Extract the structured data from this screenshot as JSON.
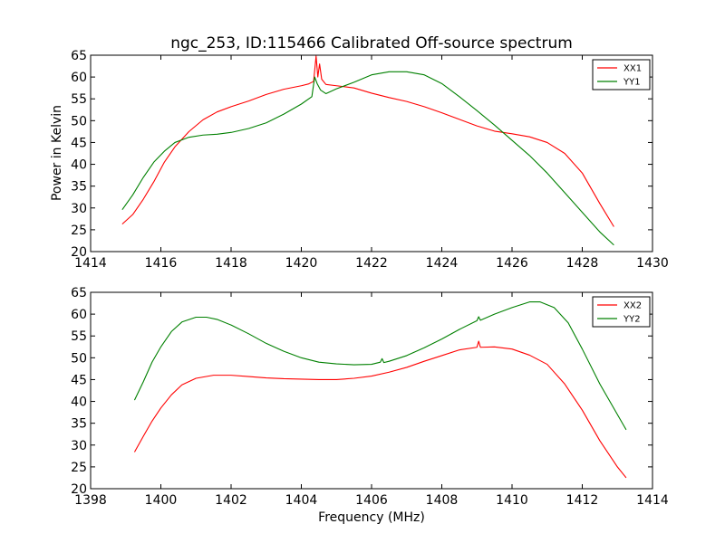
{
  "figure": {
    "title": "ngc_253, ID:115466 Calibrated Off-source spectrum",
    "ylabel": "Power in Kelvin",
    "xlabel": "Frequency (MHz)"
  },
  "chart_data": [
    {
      "type": "line",
      "title": "ngc_253, ID:115466 Calibrated Off-source spectrum",
      "ylabel": "Power in Kelvin",
      "xlabel": "",
      "xlim": [
        1414,
        1430
      ],
      "ylim": [
        20,
        65
      ],
      "xticks": [
        1414,
        1416,
        1418,
        1420,
        1422,
        1424,
        1426,
        1428,
        1430
      ],
      "yticks": [
        20,
        25,
        30,
        35,
        40,
        45,
        50,
        55,
        60,
        65
      ],
      "grid": false,
      "legend": "top-right",
      "series": [
        {
          "name": "XX1",
          "color": "#ff0000",
          "points": [
            [
              1414.9,
              26.3
            ],
            [
              1415.2,
              28.5
            ],
            [
              1415.5,
              32.0
            ],
            [
              1415.8,
              36.0
            ],
            [
              1416.1,
              40.5
            ],
            [
              1416.4,
              44.0
            ],
            [
              1416.8,
              47.5
            ],
            [
              1417.2,
              50.2
            ],
            [
              1417.6,
              52.0
            ],
            [
              1418.0,
              53.2
            ],
            [
              1418.5,
              54.5
            ],
            [
              1419.0,
              56.0
            ],
            [
              1419.5,
              57.2
            ],
            [
              1420.0,
              58.0
            ],
            [
              1420.2,
              58.4
            ],
            [
              1420.35,
              59.0
            ],
            [
              1420.42,
              64.8
            ],
            [
              1420.47,
              60.0
            ],
            [
              1420.52,
              63.0
            ],
            [
              1420.58,
              59.5
            ],
            [
              1420.7,
              58.3
            ],
            [
              1421.0,
              58.0
            ],
            [
              1421.5,
              57.5
            ],
            [
              1422.0,
              56.3
            ],
            [
              1422.5,
              55.3
            ],
            [
              1423.0,
              54.4
            ],
            [
              1423.5,
              53.2
            ],
            [
              1424.0,
              51.8
            ],
            [
              1424.5,
              50.3
            ],
            [
              1425.0,
              48.8
            ],
            [
              1425.5,
              47.6
            ],
            [
              1426.0,
              47.0
            ],
            [
              1426.5,
              46.3
            ],
            [
              1427.0,
              45.0
            ],
            [
              1427.5,
              42.5
            ],
            [
              1428.0,
              38.0
            ],
            [
              1428.5,
              31.0
            ],
            [
              1428.9,
              25.7
            ]
          ]
        },
        {
          "name": "YY1",
          "color": "#008000",
          "points": [
            [
              1414.9,
              29.6
            ],
            [
              1415.2,
              33.0
            ],
            [
              1415.5,
              37.0
            ],
            [
              1415.8,
              40.5
            ],
            [
              1416.1,
              43.0
            ],
            [
              1416.4,
              45.0
            ],
            [
              1416.8,
              46.2
            ],
            [
              1417.2,
              46.7
            ],
            [
              1417.6,
              46.9
            ],
            [
              1418.0,
              47.3
            ],
            [
              1418.5,
              48.2
            ],
            [
              1419.0,
              49.5
            ],
            [
              1419.5,
              51.5
            ],
            [
              1420.0,
              53.8
            ],
            [
              1420.3,
              55.5
            ],
            [
              1420.38,
              60.0
            ],
            [
              1420.45,
              58.5
            ],
            [
              1420.55,
              57.0
            ],
            [
              1420.7,
              56.2
            ],
            [
              1421.0,
              57.3
            ],
            [
              1421.5,
              58.8
            ],
            [
              1422.0,
              60.5
            ],
            [
              1422.5,
              61.2
            ],
            [
              1423.0,
              61.2
            ],
            [
              1423.5,
              60.5
            ],
            [
              1424.0,
              58.5
            ],
            [
              1424.5,
              55.5
            ],
            [
              1425.0,
              52.3
            ],
            [
              1425.5,
              49.0
            ],
            [
              1426.0,
              45.5
            ],
            [
              1426.5,
              42.0
            ],
            [
              1427.0,
              38.0
            ],
            [
              1427.5,
              33.5
            ],
            [
              1428.0,
              29.0
            ],
            [
              1428.5,
              24.5
            ],
            [
              1428.9,
              21.5
            ]
          ]
        }
      ]
    },
    {
      "type": "line",
      "title": "",
      "ylabel": "",
      "xlabel": "Frequency (MHz)",
      "xlim": [
        1398,
        1414
      ],
      "ylim": [
        20,
        65
      ],
      "xticks": [
        1398,
        1400,
        1402,
        1404,
        1406,
        1408,
        1410,
        1412,
        1414
      ],
      "yticks": [
        20,
        25,
        30,
        35,
        40,
        45,
        50,
        55,
        60,
        65
      ],
      "grid": false,
      "legend": "top-right",
      "series": [
        {
          "name": "XX2",
          "color": "#ff0000",
          "points": [
            [
              1399.25,
              28.4
            ],
            [
              1399.5,
              32.0
            ],
            [
              1399.75,
              35.5
            ],
            [
              1400.0,
              38.5
            ],
            [
              1400.3,
              41.5
            ],
            [
              1400.6,
              43.8
            ],
            [
              1401.0,
              45.3
            ],
            [
              1401.5,
              46.0
            ],
            [
              1402.0,
              46.0
            ],
            [
              1402.5,
              45.7
            ],
            [
              1403.0,
              45.4
            ],
            [
              1403.5,
              45.2
            ],
            [
              1404.0,
              45.1
            ],
            [
              1404.5,
              45.0
            ],
            [
              1405.0,
              45.0
            ],
            [
              1405.5,
              45.3
            ],
            [
              1406.0,
              45.8
            ],
            [
              1406.5,
              46.7
            ],
            [
              1407.0,
              47.8
            ],
            [
              1407.5,
              49.2
            ],
            [
              1408.0,
              50.5
            ],
            [
              1408.5,
              51.8
            ],
            [
              1409.0,
              52.4
            ],
            [
              1409.05,
              53.8
            ],
            [
              1409.1,
              52.4
            ],
            [
              1409.5,
              52.5
            ],
            [
              1410.0,
              52.0
            ],
            [
              1410.5,
              50.6
            ],
            [
              1411.0,
              48.5
            ],
            [
              1411.5,
              44.0
            ],
            [
              1412.0,
              38.0
            ],
            [
              1412.5,
              31.0
            ],
            [
              1413.0,
              25.0
            ],
            [
              1413.25,
              22.5
            ]
          ]
        },
        {
          "name": "YY2",
          "color": "#008000",
          "points": [
            [
              1399.25,
              40.3
            ],
            [
              1399.5,
              44.5
            ],
            [
              1399.75,
              49.0
            ],
            [
              1400.0,
              52.5
            ],
            [
              1400.3,
              56.0
            ],
            [
              1400.6,
              58.2
            ],
            [
              1401.0,
              59.3
            ],
            [
              1401.3,
              59.3
            ],
            [
              1401.6,
              58.8
            ],
            [
              1402.0,
              57.5
            ],
            [
              1402.5,
              55.5
            ],
            [
              1403.0,
              53.3
            ],
            [
              1403.5,
              51.5
            ],
            [
              1404.0,
              50.0
            ],
            [
              1404.5,
              49.0
            ],
            [
              1405.0,
              48.6
            ],
            [
              1405.5,
              48.4
            ],
            [
              1406.0,
              48.5
            ],
            [
              1406.25,
              49.0
            ],
            [
              1406.3,
              49.8
            ],
            [
              1406.35,
              48.9
            ],
            [
              1406.5,
              49.2
            ],
            [
              1407.0,
              50.5
            ],
            [
              1407.5,
              52.3
            ],
            [
              1408.0,
              54.3
            ],
            [
              1408.5,
              56.5
            ],
            [
              1409.0,
              58.5
            ],
            [
              1409.05,
              59.4
            ],
            [
              1409.1,
              58.6
            ],
            [
              1409.5,
              60.0
            ],
            [
              1410.0,
              61.5
            ],
            [
              1410.5,
              62.8
            ],
            [
              1410.8,
              62.8
            ],
            [
              1411.2,
              61.5
            ],
            [
              1411.6,
              58.0
            ],
            [
              1412.0,
              52.0
            ],
            [
              1412.5,
              44.0
            ],
            [
              1413.0,
              37.0
            ],
            [
              1413.25,
              33.5
            ]
          ]
        }
      ]
    }
  ]
}
